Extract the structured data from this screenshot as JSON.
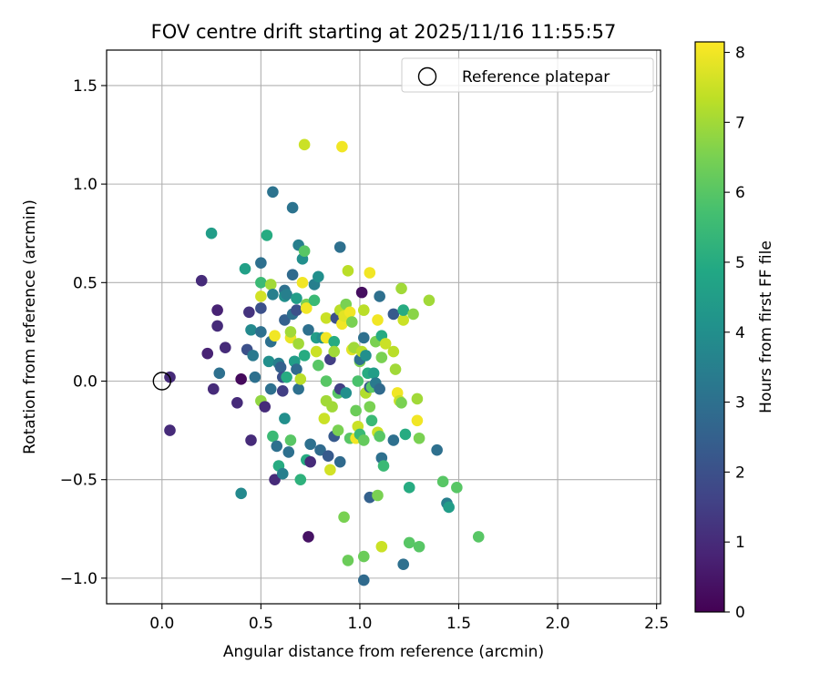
{
  "chart_data": {
    "type": "scatter",
    "title": "FOV centre drift starting at 2025/11/16 11:55:57",
    "xlabel": "Angular distance from reference (arcmin)",
    "ylabel": "Rotation from reference (arcmin)",
    "xlim": [
      -0.28,
      2.52
    ],
    "ylim": [
      -1.13,
      1.68
    ],
    "xticks": [
      0.0,
      0.5,
      1.0,
      1.5,
      2.0,
      2.5
    ],
    "xtick_labels": [
      "0.0",
      "0.5",
      "1.0",
      "1.5",
      "2.0",
      "2.5"
    ],
    "yticks": [
      -1.0,
      -0.5,
      0.0,
      0.5,
      1.0,
      1.5
    ],
    "ytick_labels": [
      "−1.0",
      "−0.5",
      "0.0",
      "0.5",
      "1.0",
      "1.5"
    ],
    "grid": true,
    "legend": {
      "position": "top-right",
      "label": "Reference platepar"
    },
    "reference": {
      "x": 0.0,
      "y": 0.0
    },
    "colorbar": {
      "label": "Hours from first FF file",
      "min": 0,
      "max": 8.15,
      "ticks": [
        0,
        1,
        2,
        3,
        4,
        5,
        6,
        7,
        8
      ],
      "tick_labels": [
        "0",
        "1",
        "2",
        "3",
        "4",
        "5",
        "6",
        "7",
        "8"
      ],
      "colormap": "viridis"
    },
    "points": [
      {
        "x": 0.04,
        "y": 0.02,
        "h": 1.0
      },
      {
        "x": 0.04,
        "y": -0.25,
        "h": 1.0
      },
      {
        "x": 0.2,
        "y": 0.51,
        "h": 1.0
      },
      {
        "x": 0.23,
        "y": 0.14,
        "h": 0.8
      },
      {
        "x": 0.26,
        "y": -0.04,
        "h": 1.0
      },
      {
        "x": 0.28,
        "y": 0.36,
        "h": 0.8
      },
      {
        "x": 0.28,
        "y": 0.28,
        "h": 1.0
      },
      {
        "x": 0.29,
        "y": 0.04,
        "h": 3.0
      },
      {
        "x": 0.32,
        "y": 0.17,
        "h": 1.0
      },
      {
        "x": 0.25,
        "y": 0.75,
        "h": 4.5
      },
      {
        "x": 0.38,
        "y": -0.11,
        "h": 1.0
      },
      {
        "x": 0.4,
        "y": 0.01,
        "h": 0.2
      },
      {
        "x": 0.4,
        "y": -0.57,
        "h": 3.8
      },
      {
        "x": 0.42,
        "y": 0.57,
        "h": 4.6
      },
      {
        "x": 0.43,
        "y": 0.16,
        "h": 2.0
      },
      {
        "x": 0.44,
        "y": 0.35,
        "h": 1.2
      },
      {
        "x": 0.45,
        "y": 0.26,
        "h": 3.8
      },
      {
        "x": 0.45,
        "y": -0.3,
        "h": 1.0
      },
      {
        "x": 0.46,
        "y": 0.13,
        "h": 3.3
      },
      {
        "x": 0.47,
        "y": 0.02,
        "h": 3.0
      },
      {
        "x": 0.5,
        "y": 0.6,
        "h": 3.0
      },
      {
        "x": 0.5,
        "y": 0.5,
        "h": 5.5
      },
      {
        "x": 0.5,
        "y": 0.43,
        "h": 7.6
      },
      {
        "x": 0.5,
        "y": 0.37,
        "h": 2.0
      },
      {
        "x": 0.5,
        "y": 0.25,
        "h": 3.0
      },
      {
        "x": 0.5,
        "y": -0.1,
        "h": 6.8
      },
      {
        "x": 0.52,
        "y": -0.13,
        "h": 1.0
      },
      {
        "x": 0.53,
        "y": 0.74,
        "h": 5.0
      },
      {
        "x": 0.54,
        "y": 0.1,
        "h": 4.0
      },
      {
        "x": 0.55,
        "y": -0.04,
        "h": 3.0
      },
      {
        "x": 0.55,
        "y": 0.2,
        "h": 3.0
      },
      {
        "x": 0.55,
        "y": 0.49,
        "h": 7.0
      },
      {
        "x": 0.56,
        "y": 0.96,
        "h": 3.1
      },
      {
        "x": 0.56,
        "y": -0.28,
        "h": 5.5
      },
      {
        "x": 0.56,
        "y": 0.44,
        "h": 3.5
      },
      {
        "x": 0.57,
        "y": -0.5,
        "h": 1.0
      },
      {
        "x": 0.57,
        "y": 0.23,
        "h": 8.0
      },
      {
        "x": 0.58,
        "y": -0.33,
        "h": 3.0
      },
      {
        "x": 0.59,
        "y": 0.09,
        "h": 3.5
      },
      {
        "x": 0.59,
        "y": -0.43,
        "h": 5.0
      },
      {
        "x": 0.6,
        "y": 0.07,
        "h": 2.5
      },
      {
        "x": 0.61,
        "y": 0.02,
        "h": 2.0
      },
      {
        "x": 0.61,
        "y": -0.05,
        "h": 1.5
      },
      {
        "x": 0.61,
        "y": -0.47,
        "h": 3.5
      },
      {
        "x": 0.62,
        "y": 0.46,
        "h": 3.0
      },
      {
        "x": 0.62,
        "y": 0.43,
        "h": 4.0
      },
      {
        "x": 0.62,
        "y": 0.31,
        "h": 2.5
      },
      {
        "x": 0.62,
        "y": -0.19,
        "h": 4.0
      },
      {
        "x": 0.63,
        "y": 0.44,
        "h": 3.5
      },
      {
        "x": 0.63,
        "y": 0.02,
        "h": 5.0
      },
      {
        "x": 0.64,
        "y": -0.36,
        "h": 3.0
      },
      {
        "x": 0.65,
        "y": 0.22,
        "h": 7.9
      },
      {
        "x": 0.65,
        "y": 0.25,
        "h": 7.0
      },
      {
        "x": 0.65,
        "y": -0.3,
        "h": 6.0
      },
      {
        "x": 0.66,
        "y": 0.88,
        "h": 3.1
      },
      {
        "x": 0.66,
        "y": 0.54,
        "h": 2.8
      },
      {
        "x": 0.66,
        "y": 0.34,
        "h": 3.0
      },
      {
        "x": 0.67,
        "y": 0.1,
        "h": 3.5
      },
      {
        "x": 0.67,
        "y": 0.1,
        "h": 4.5
      },
      {
        "x": 0.68,
        "y": 0.36,
        "h": 2.0
      },
      {
        "x": 0.68,
        "y": 0.42,
        "h": 4.5
      },
      {
        "x": 0.68,
        "y": 0.06,
        "h": 2.8
      },
      {
        "x": 0.69,
        "y": 0.19,
        "h": 7.0
      },
      {
        "x": 0.69,
        "y": -0.04,
        "h": 3.0
      },
      {
        "x": 0.69,
        "y": 0.69,
        "h": 3.5
      },
      {
        "x": 0.7,
        "y": 0.01,
        "h": 7.3
      },
      {
        "x": 0.7,
        "y": -0.5,
        "h": 5.2
      },
      {
        "x": 0.71,
        "y": 0.5,
        "h": 8.0
      },
      {
        "x": 0.71,
        "y": 0.62,
        "h": 4.0
      },
      {
        "x": 0.72,
        "y": 1.2,
        "h": 7.5
      },
      {
        "x": 0.72,
        "y": 0.66,
        "h": 6.0
      },
      {
        "x": 0.72,
        "y": 0.13,
        "h": 5.0
      },
      {
        "x": 0.73,
        "y": 0.39,
        "h": 6.5
      },
      {
        "x": 0.73,
        "y": 0.37,
        "h": 8.0
      },
      {
        "x": 0.73,
        "y": -0.4,
        "h": 5.0
      },
      {
        "x": 0.74,
        "y": 0.26,
        "h": 3.0
      },
      {
        "x": 0.74,
        "y": -0.79,
        "h": 0.4
      },
      {
        "x": 0.75,
        "y": -0.32,
        "h": 3.0
      },
      {
        "x": 0.75,
        "y": -0.41,
        "h": 1.0
      },
      {
        "x": 0.77,
        "y": 0.41,
        "h": 5.5
      },
      {
        "x": 0.77,
        "y": 0.49,
        "h": 3.5
      },
      {
        "x": 0.78,
        "y": 0.22,
        "h": 4.5
      },
      {
        "x": 0.78,
        "y": 0.15,
        "h": 7.5
      },
      {
        "x": 0.79,
        "y": 0.53,
        "h": 4.0
      },
      {
        "x": 0.79,
        "y": 0.08,
        "h": 6.0
      },
      {
        "x": 0.8,
        "y": -0.35,
        "h": 2.8
      },
      {
        "x": 0.81,
        "y": 0.22,
        "h": 4.0
      },
      {
        "x": 0.82,
        "y": -0.19,
        "h": 7.5
      },
      {
        "x": 0.83,
        "y": 0.22,
        "h": 8.0
      },
      {
        "x": 0.83,
        "y": 0.32,
        "h": 7.5
      },
      {
        "x": 0.83,
        "y": -0.1,
        "h": 7.0
      },
      {
        "x": 0.83,
        "y": 0.0,
        "h": 6.0
      },
      {
        "x": 0.84,
        "y": -0.38,
        "h": 2.3
      },
      {
        "x": 0.85,
        "y": 0.11,
        "h": 1.5
      },
      {
        "x": 0.85,
        "y": -0.45,
        "h": 7.6
      },
      {
        "x": 0.86,
        "y": -0.13,
        "h": 7.0
      },
      {
        "x": 0.87,
        "y": 0.2,
        "h": 5.0
      },
      {
        "x": 0.87,
        "y": 0.15,
        "h": 7.0
      },
      {
        "x": 0.87,
        "y": -0.28,
        "h": 2.3
      },
      {
        "x": 0.88,
        "y": 0.32,
        "h": 2.0
      },
      {
        "x": 0.89,
        "y": -0.06,
        "h": 6.0
      },
      {
        "x": 0.89,
        "y": -0.25,
        "h": 6.5
      },
      {
        "x": 0.9,
        "y": -0.04,
        "h": 1.5
      },
      {
        "x": 0.9,
        "y": 0.36,
        "h": 7.3
      },
      {
        "x": 0.9,
        "y": 0.68,
        "h": 3.0
      },
      {
        "x": 0.9,
        "y": -0.41,
        "h": 2.8
      },
      {
        "x": 0.91,
        "y": 1.19,
        "h": 8.0
      },
      {
        "x": 0.91,
        "y": 0.29,
        "h": 8.0
      },
      {
        "x": 0.92,
        "y": 0.33,
        "h": 7.8
      },
      {
        "x": 0.92,
        "y": -0.69,
        "h": 6.5
      },
      {
        "x": 0.93,
        "y": 0.39,
        "h": 6.5
      },
      {
        "x": 0.93,
        "y": -0.06,
        "h": 4.0
      },
      {
        "x": 0.94,
        "y": -0.91,
        "h": 6.3
      },
      {
        "x": 0.94,
        "y": 0.56,
        "h": 7.3
      },
      {
        "x": 0.95,
        "y": 0.35,
        "h": 8.0
      },
      {
        "x": 0.95,
        "y": -0.29,
        "h": 6.0
      },
      {
        "x": 0.96,
        "y": 0.16,
        "h": 7.8
      },
      {
        "x": 0.96,
        "y": 0.3,
        "h": 6.5
      },
      {
        "x": 0.97,
        "y": 0.17,
        "h": 7.0
      },
      {
        "x": 0.98,
        "y": -0.15,
        "h": 6.3
      },
      {
        "x": 0.98,
        "y": -0.29,
        "h": 8.0
      },
      {
        "x": 0.99,
        "y": 0.0,
        "h": 5.8
      },
      {
        "x": 0.99,
        "y": -0.23,
        "h": 7.5
      },
      {
        "x": 1.0,
        "y": 0.1,
        "h": 6.5
      },
      {
        "x": 1.0,
        "y": -0.27,
        "h": 5.5
      },
      {
        "x": 1.0,
        "y": 0.11,
        "h": 3.0
      },
      {
        "x": 1.01,
        "y": 0.45,
        "h": 0.3
      },
      {
        "x": 1.01,
        "y": 0.15,
        "h": 7.3
      },
      {
        "x": 1.02,
        "y": 0.36,
        "h": 7.3
      },
      {
        "x": 1.02,
        "y": 0.22,
        "h": 3.0
      },
      {
        "x": 1.02,
        "y": -0.3,
        "h": 6.2
      },
      {
        "x": 1.02,
        "y": -1.01,
        "h": 2.8
      },
      {
        "x": 1.02,
        "y": -0.89,
        "h": 6.3
      },
      {
        "x": 1.03,
        "y": 0.13,
        "h": 4.0
      },
      {
        "x": 1.03,
        "y": -0.06,
        "h": 7.2
      },
      {
        "x": 1.04,
        "y": 0.04,
        "h": 5.0
      },
      {
        "x": 1.05,
        "y": -0.03,
        "h": 2.3
      },
      {
        "x": 1.05,
        "y": -0.59,
        "h": 2.5
      },
      {
        "x": 1.05,
        "y": -0.13,
        "h": 6.5
      },
      {
        "x": 1.05,
        "y": 0.55,
        "h": 8.0
      },
      {
        "x": 1.06,
        "y": -0.2,
        "h": 5.5
      },
      {
        "x": 1.06,
        "y": -0.03,
        "h": 6.0
      },
      {
        "x": 1.07,
        "y": 0.04,
        "h": 4.5
      },
      {
        "x": 1.08,
        "y": 0.2,
        "h": 6.5
      },
      {
        "x": 1.08,
        "y": -0.01,
        "h": 3.3
      },
      {
        "x": 1.09,
        "y": 0.31,
        "h": 8.0
      },
      {
        "x": 1.09,
        "y": -0.58,
        "h": 6.5
      },
      {
        "x": 1.09,
        "y": -0.26,
        "h": 7.5
      },
      {
        "x": 1.1,
        "y": 0.43,
        "h": 3.0
      },
      {
        "x": 1.1,
        "y": -0.04,
        "h": 2.8
      },
      {
        "x": 1.1,
        "y": -0.28,
        "h": 6.0
      },
      {
        "x": 1.11,
        "y": 0.23,
        "h": 5.0
      },
      {
        "x": 1.11,
        "y": -0.39,
        "h": 3.0
      },
      {
        "x": 1.11,
        "y": -0.84,
        "h": 7.5
      },
      {
        "x": 1.11,
        "y": 0.12,
        "h": 6.5
      },
      {
        "x": 1.12,
        "y": -0.43,
        "h": 5.5
      },
      {
        "x": 1.13,
        "y": 0.19,
        "h": 7.5
      },
      {
        "x": 1.17,
        "y": 0.34,
        "h": 2.3
      },
      {
        "x": 1.17,
        "y": 0.15,
        "h": 7.3
      },
      {
        "x": 1.17,
        "y": -0.3,
        "h": 3.0
      },
      {
        "x": 1.18,
        "y": 0.06,
        "h": 7.0
      },
      {
        "x": 1.19,
        "y": -0.06,
        "h": 8.0
      },
      {
        "x": 1.2,
        "y": -0.1,
        "h": 7.5
      },
      {
        "x": 1.21,
        "y": -0.11,
        "h": 6.5
      },
      {
        "x": 1.21,
        "y": 0.47,
        "h": 7.0
      },
      {
        "x": 1.22,
        "y": 0.31,
        "h": 7.5
      },
      {
        "x": 1.22,
        "y": 0.36,
        "h": 5.0
      },
      {
        "x": 1.22,
        "y": -0.93,
        "h": 3.0
      },
      {
        "x": 1.23,
        "y": -0.27,
        "h": 5.0
      },
      {
        "x": 1.25,
        "y": -0.82,
        "h": 6.0
      },
      {
        "x": 1.25,
        "y": -0.54,
        "h": 5.0
      },
      {
        "x": 1.27,
        "y": 0.34,
        "h": 6.7
      },
      {
        "x": 1.29,
        "y": -0.2,
        "h": 8.0
      },
      {
        "x": 1.29,
        "y": -0.09,
        "h": 7.0
      },
      {
        "x": 1.3,
        "y": -0.29,
        "h": 6.5
      },
      {
        "x": 1.3,
        "y": -0.84,
        "h": 6.0
      },
      {
        "x": 1.35,
        "y": 0.41,
        "h": 7.0
      },
      {
        "x": 1.39,
        "y": -0.35,
        "h": 3.0
      },
      {
        "x": 1.42,
        "y": -0.51,
        "h": 6.0
      },
      {
        "x": 1.44,
        "y": -0.62,
        "h": 3.5
      },
      {
        "x": 1.45,
        "y": -0.64,
        "h": 4.5
      },
      {
        "x": 1.49,
        "y": -0.54,
        "h": 6.0
      },
      {
        "x": 1.6,
        "y": -0.79,
        "h": 6.0
      }
    ]
  }
}
